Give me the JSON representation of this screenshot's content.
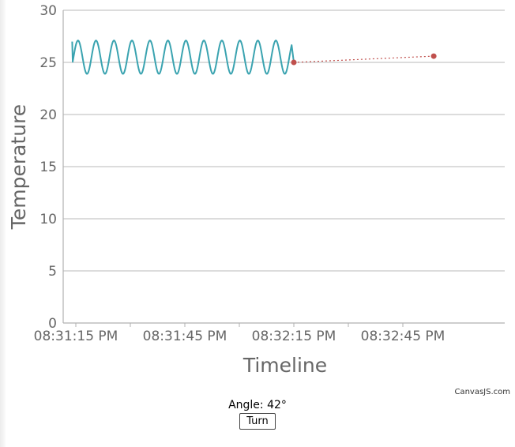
{
  "chart_data": {
    "type": "line",
    "xlabel": "Timeline",
    "ylabel": "Temperature",
    "ylim": [
      0,
      30
    ],
    "y_ticks": [
      0,
      5,
      10,
      15,
      20,
      25,
      30
    ],
    "x_tick_labels": [
      "08:31:15 PM",
      "08:31:45 PM",
      "08:32:15 PM",
      "08:32:45 PM"
    ],
    "xlim_seconds": [
      0,
      100
    ],
    "x_tick_seconds": [
      0,
      30,
      60,
      90
    ],
    "gridlines": "horizontal",
    "series": [
      {
        "style": "spline",
        "color": "#3aa3b0",
        "oscillation": {
          "start": -1,
          "end": 60,
          "period": 4.95,
          "min": 23.9,
          "max": 27.1,
          "start_value": 27.0,
          "end_value": 25.0
        }
      },
      {
        "style": "dotted",
        "color": "#c0504d",
        "points": [
          {
            "t": 60,
            "y": 25.0
          },
          {
            "t": 98.5,
            "y": 25.6
          }
        ]
      }
    ]
  },
  "credit": "CanvasJS.com",
  "controls": {
    "angle_label": "Angle: 42°",
    "button_label": "Turn"
  }
}
